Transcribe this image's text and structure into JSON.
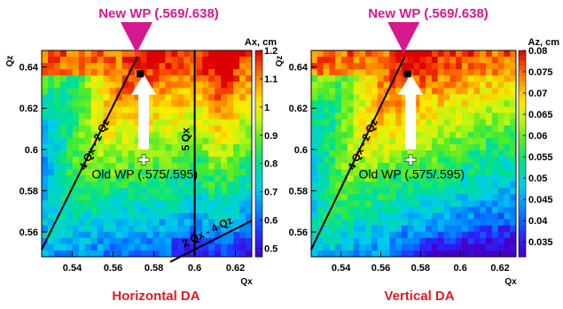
{
  "colors": {
    "annotation_magenta": "#d6198f",
    "caption_red": "#e01b24",
    "line_black": "#000000",
    "arrow_white": "#ffffff"
  },
  "chart_data": [
    {
      "type": "heatmap",
      "caption": "Horizontal DA",
      "top_annotation": "New WP (.569/.638)",
      "old_wp_label": "Old WP (.575/.595)",
      "xlabel": "Qx",
      "ylabel": "Qz",
      "xlim": [
        0.525,
        0.628
      ],
      "ylim": [
        0.548,
        0.648
      ],
      "x_ticks": [
        {
          "value": 0.54,
          "label": "0.54"
        },
        {
          "value": 0.56,
          "label": "0.56"
        },
        {
          "value": 0.58,
          "label": "0.58"
        },
        {
          "value": 0.6,
          "label": "0.6"
        },
        {
          "value": 0.62,
          "label": "0.62"
        }
      ],
      "y_ticks": [
        {
          "value": 0.56,
          "label": "0.56"
        },
        {
          "value": 0.58,
          "label": "0.58"
        },
        {
          "value": 0.6,
          "label": "0.6"
        },
        {
          "value": 0.62,
          "label": "0.62"
        },
        {
          "value": 0.64,
          "label": "0.64"
        }
      ],
      "colorbar": {
        "title": "Ax, cm",
        "range": [
          0.47,
          1.2
        ],
        "ticks": [
          {
            "value": 1.2,
            "label": "1.2"
          },
          {
            "value": 1.1,
            "label": "1.1"
          },
          {
            "value": 1.0,
            "label": "1"
          },
          {
            "value": 0.9,
            "label": "0.9"
          },
          {
            "value": 0.8,
            "label": "0.8"
          },
          {
            "value": 0.7,
            "label": "0.7"
          },
          {
            "value": 0.6,
            "label": "0.6"
          },
          {
            "value": 0.5,
            "label": "0.5"
          }
        ]
      },
      "resonance_lines": [
        {
          "label": "4 Qx - 2 Qz",
          "x1": 0.525,
          "y1": 0.5515,
          "x2": 0.572,
          "y2": 0.645
        },
        {
          "label": "5 Qx",
          "x1": 0.6,
          "y1": 0.548,
          "x2": 0.6,
          "y2": 0.648
        },
        {
          "label": "2 Qx - 4 Qz",
          "x1": 0.588,
          "y1": 0.5455,
          "x2": 0.628,
          "y2": 0.5655
        }
      ],
      "old_wp": {
        "qx": 0.575,
        "qz": 0.595
      },
      "new_wp": {
        "qx": 0.569,
        "qz": 0.638
      },
      "grid": {
        "nx": 34,
        "ny": 33
      }
    },
    {
      "type": "heatmap",
      "caption": "Vertical DA",
      "top_annotation": "New WP (.569/.638)",
      "old_wp_label": "Old WP (.575/.595)",
      "xlabel": "Qx",
      "ylabel": "Qz",
      "xlim": [
        0.525,
        0.628
      ],
      "ylim": [
        0.548,
        0.648
      ],
      "x_ticks": [
        {
          "value": 0.54,
          "label": "0.54"
        },
        {
          "value": 0.56,
          "label": "0.56"
        },
        {
          "value": 0.58,
          "label": "0.58"
        },
        {
          "value": 0.6,
          "label": "0.6"
        },
        {
          "value": 0.62,
          "label": "0.62"
        }
      ],
      "y_ticks": [
        {
          "value": 0.56,
          "label": "0.56"
        },
        {
          "value": 0.58,
          "label": "0.58"
        },
        {
          "value": 0.6,
          "label": "0.6"
        },
        {
          "value": 0.62,
          "label": "0.62"
        },
        {
          "value": 0.64,
          "label": "0.64"
        }
      ],
      "colorbar": {
        "title": "Az, cm",
        "range": [
          0.0315,
          0.08
        ],
        "ticks": [
          {
            "value": 0.08,
            "label": "0.08"
          },
          {
            "value": 0.075,
            "label": "0.075"
          },
          {
            "value": 0.07,
            "label": "0.07"
          },
          {
            "value": 0.065,
            "label": "0.065"
          },
          {
            "value": 0.06,
            "label": "0.06"
          },
          {
            "value": 0.055,
            "label": "0.055"
          },
          {
            "value": 0.05,
            "label": "0.05"
          },
          {
            "value": 0.045,
            "label": "0.045"
          },
          {
            "value": 0.04,
            "label": "0.04"
          },
          {
            "value": 0.035,
            "label": "0.035"
          }
        ]
      },
      "resonance_lines": [
        {
          "label": "4 Qx - 2 Qz",
          "x1": 0.525,
          "y1": 0.5515,
          "x2": 0.572,
          "y2": 0.645
        }
      ],
      "old_wp": {
        "qx": 0.575,
        "qz": 0.595
      },
      "new_wp": {
        "qx": 0.569,
        "qz": 0.638
      },
      "grid": {
        "nx": 34,
        "ny": 33
      }
    }
  ]
}
